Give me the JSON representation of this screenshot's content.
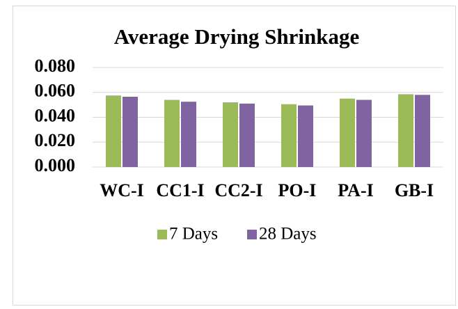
{
  "chart_data": {
    "type": "bar",
    "title": "Average Drying Shrinkage",
    "categories": [
      "WC-I",
      "CC1-I",
      "CC2-I",
      "PO-I",
      "PA-I",
      "GB-I"
    ],
    "series": [
      {
        "name": "7 Days",
        "color": "#9bbb59",
        "values": [
          0.0575,
          0.054,
          0.052,
          0.0505,
          0.055,
          0.0585
        ]
      },
      {
        "name": "28 Days",
        "color": "#8064a2",
        "values": [
          0.0565,
          0.0525,
          0.051,
          0.0495,
          0.054,
          0.058
        ]
      }
    ],
    "ylim": [
      0,
      0.08
    ],
    "yticks": [
      {
        "value": 0,
        "label": "0.000"
      },
      {
        "value": 0.02,
        "label": "0.020"
      },
      {
        "value": 0.04,
        "label": "0.040"
      },
      {
        "value": 0.06,
        "label": "0.060"
      },
      {
        "value": 0.08,
        "label": "0.080"
      }
    ],
    "grid": true,
    "legend": "bottom"
  }
}
